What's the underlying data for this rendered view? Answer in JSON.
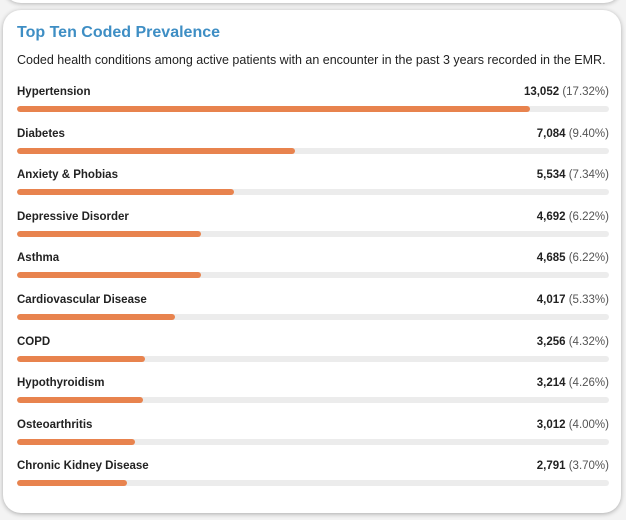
{
  "card": {
    "title": "Top Ten Coded Prevalence",
    "subtitle": "Coded health conditions among active patients with an encounter in the past 3 years recorded in the EMR.",
    "bar_color": "#e8834e",
    "track_color": "#ececec",
    "title_color": "#3e8ec4",
    "scale_max_percent": 20,
    "rows": [
      {
        "label": "Hypertension",
        "count": "13,052",
        "percent": "(17.32%)",
        "value": 17.32
      },
      {
        "label": "Diabetes",
        "count": "7,084",
        "percent": "(9.40%)",
        "value": 9.4
      },
      {
        "label": "Anxiety & Phobias",
        "count": "5,534",
        "percent": "(7.34%)",
        "value": 7.34
      },
      {
        "label": "Depressive Disorder",
        "count": "4,692",
        "percent": "(6.22%)",
        "value": 6.22
      },
      {
        "label": "Asthma",
        "count": "4,685",
        "percent": "(6.22%)",
        "value": 6.22
      },
      {
        "label": "Cardiovascular Disease",
        "count": "4,017",
        "percent": "(5.33%)",
        "value": 5.33
      },
      {
        "label": "COPD",
        "count": "3,256",
        "percent": "(4.32%)",
        "value": 4.32
      },
      {
        "label": "Hypothyroidism",
        "count": "3,214",
        "percent": "(4.26%)",
        "value": 4.26
      },
      {
        "label": "Osteoarthritis",
        "count": "3,012",
        "percent": "(4.00%)",
        "value": 4.0
      },
      {
        "label": "Chronic Kidney Disease",
        "count": "2,791",
        "percent": "(3.70%)",
        "value": 3.7
      }
    ]
  }
}
